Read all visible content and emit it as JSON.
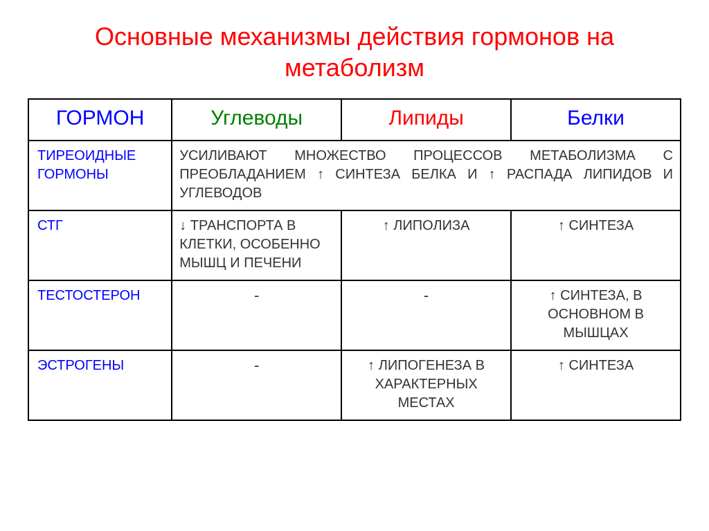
{
  "title_text": "Основные механизмы действия гормонов на метаболизм",
  "title_color": "#ff0000",
  "columns": [
    {
      "label": "ГОРМОН",
      "color": "#0000ff",
      "width": "22%"
    },
    {
      "label": "Углеводы",
      "color": "#008000",
      "width": "26%"
    },
    {
      "label": "Липиды",
      "color": "#ff0000",
      "width": "26%"
    },
    {
      "label": "Белки",
      "color": "#0000ff",
      "width": "26%"
    }
  ],
  "hormone_color": "#0000ff",
  "body_text_color": "#333333",
  "rows": [
    {
      "hormone": "ТИРЕОИДНЫЕ ГОРМОНЫ",
      "span": true,
      "span_text": "УСИЛИВАЮТ МНОЖЕСТВО ПРОЦЕССОВ МЕТАБОЛИЗМА С ПРЕОБЛАДАНИЕМ ↑ СИНТЕЗА БЕЛКА И ↑ РАСПАДА ЛИПИДОВ И УГЛЕВОДОВ"
    },
    {
      "hormone": "СТГ",
      "carbs": "↓ ТРАНСПОРТА В КЛЕТКИ, ОСОБЕННО МЫШЦ И ПЕЧЕНИ",
      "lipids": "↑ ЛИПОЛИЗА",
      "proteins": "↑ СИНТЕЗА"
    },
    {
      "hormone": "ТЕСТОСТЕРОН",
      "carbs": "-",
      "lipids": "-",
      "proteins": "↑ СИНТЕЗА, В ОСНОВНОМ В МЫШЦАХ"
    },
    {
      "hormone": "ЭСТРОГЕНЫ",
      "carbs": "-",
      "lipids": "↑ ЛИПОГЕНЕЗА В ХАРАКТЕРНЫХ МЕСТАХ",
      "proteins": "↑ СИНТЕЗА"
    }
  ]
}
